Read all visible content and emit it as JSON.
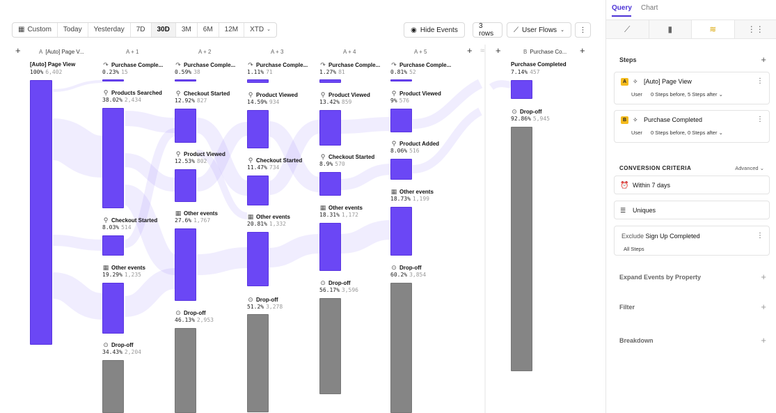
{
  "toolbar": {
    "date_options": [
      "Custom",
      "Today",
      "Yesterday",
      "7D",
      "30D",
      "3M",
      "6M",
      "12M",
      "XTD"
    ],
    "active_option": "30D",
    "hide_events": "Hide Events",
    "rows": "3 rows",
    "flow_type": "User Flows"
  },
  "columns": [
    {
      "prefix": "A",
      "label": "[Auto] Page V..."
    },
    {
      "prefix": "",
      "label": "A + 1"
    },
    {
      "prefix": "",
      "label": "A + 2"
    },
    {
      "prefix": "",
      "label": "A + 3"
    },
    {
      "prefix": "",
      "label": "A + 4"
    },
    {
      "prefix": "",
      "label": "A + 5"
    },
    {
      "prefix": "B",
      "label": "Purchase Co..."
    }
  ],
  "nodes": {
    "c0": [
      {
        "label": "[Auto] Page View",
        "pct": "100%",
        "count": "6,402"
      }
    ],
    "c1": [
      {
        "label": "Purchase Comple...",
        "pct": "0.23%",
        "count": "15"
      },
      {
        "label": "Products Searched",
        "pct": "38.02%",
        "count": "2,434"
      },
      {
        "label": "Checkout Started",
        "pct": "8.03%",
        "count": "514"
      },
      {
        "label": "Other events",
        "pct": "19.29%",
        "count": "1,235"
      },
      {
        "label": "Drop-off",
        "pct": "34.43%",
        "count": "2,204"
      }
    ],
    "c2": [
      {
        "label": "Purchase Comple...",
        "pct": "0.59%",
        "count": "38"
      },
      {
        "label": "Checkout Started",
        "pct": "12.92%",
        "count": "827"
      },
      {
        "label": "Product Viewed",
        "pct": "12.53%",
        "count": "802"
      },
      {
        "label": "Other events",
        "pct": "27.6%",
        "count": "1,767"
      },
      {
        "label": "Drop-off",
        "pct": "46.13%",
        "count": "2,953"
      }
    ],
    "c3": [
      {
        "label": "Purchase Comple...",
        "pct": "1.11%",
        "count": "71"
      },
      {
        "label": "Product Viewed",
        "pct": "14.59%",
        "count": "934"
      },
      {
        "label": "Checkout Started",
        "pct": "11.47%",
        "count": "734"
      },
      {
        "label": "Other events",
        "pct": "20.81%",
        "count": "1,332"
      },
      {
        "label": "Drop-off",
        "pct": "51.2%",
        "count": "3,278"
      }
    ],
    "c4": [
      {
        "label": "Purchase Comple...",
        "pct": "1.27%",
        "count": "81"
      },
      {
        "label": "Product Viewed",
        "pct": "13.42%",
        "count": "859"
      },
      {
        "label": "Checkout Started",
        "pct": "8.9%",
        "count": "570"
      },
      {
        "label": "Other events",
        "pct": "18.31%",
        "count": "1,172"
      },
      {
        "label": "Drop-off",
        "pct": "56.17%",
        "count": "3,596"
      }
    ],
    "c5": [
      {
        "label": "Purchase Comple...",
        "pct": "0.81%",
        "count": "52"
      },
      {
        "label": "Product Viewed",
        "pct": "9%",
        "count": "576"
      },
      {
        "label": "Product Added",
        "pct": "8.06%",
        "count": "516"
      },
      {
        "label": "Other events",
        "pct": "18.73%",
        "count": "1,199"
      },
      {
        "label": "Drop-off",
        "pct": "60.2%",
        "count": "3,854"
      }
    ],
    "c6": [
      {
        "label": "Purchase Completed",
        "pct": "7.14%",
        "count": "457"
      },
      {
        "label": "Drop-off",
        "pct": "92.86%",
        "count": "5,945"
      }
    ]
  },
  "panel": {
    "tabs": [
      "Query",
      "Chart"
    ],
    "steps_title": "Steps",
    "step_a": {
      "badge": "A",
      "name": "[Auto] Page View",
      "who": "User",
      "window": "0 Steps before, 5 Steps after"
    },
    "step_b": {
      "badge": "B",
      "name": "Purchase Completed",
      "who": "User",
      "window": "0 Steps before, 0 Steps after"
    },
    "criteria_title": "CONVERSION CRITERIA",
    "advanced": "Advanced",
    "within": "Within 7 days",
    "uniques": "Uniques",
    "exclude_prefix": "Exclude",
    "exclude_event": "Sign Up Completed",
    "exclude_scope": "All Steps",
    "expand": "Expand Events by Property",
    "filter": "Filter",
    "breakdown": "Breakdown"
  },
  "colors": {
    "accent": "#4c33d6",
    "bar": "#6b47f5",
    "dropoff": "#858585",
    "badge": "#f4bb1e"
  }
}
